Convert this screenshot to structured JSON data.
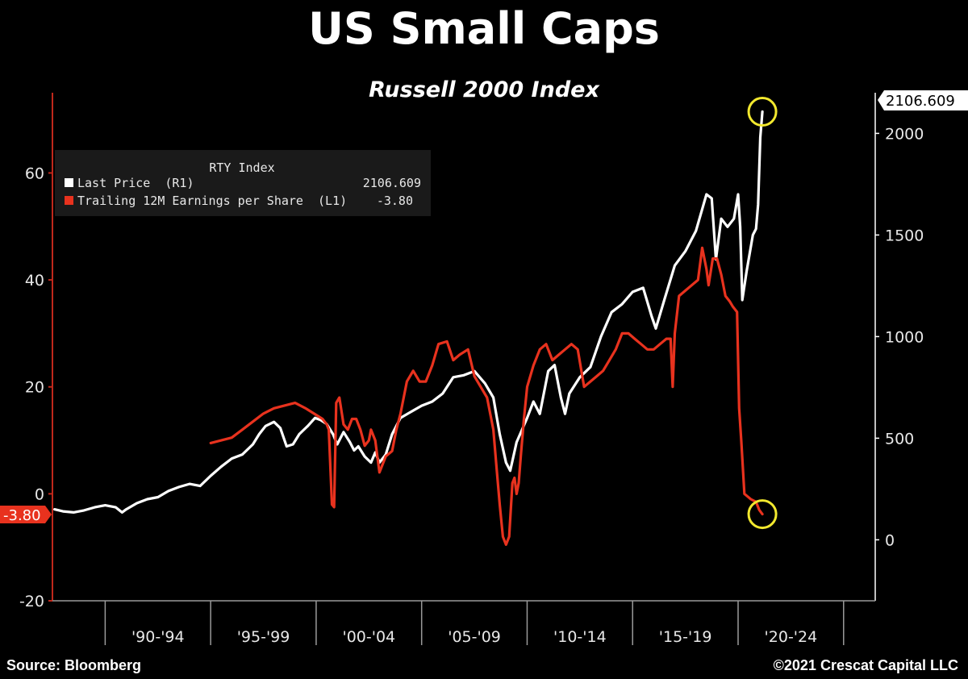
{
  "chart_data": {
    "type": "line",
    "title": "US Small Caps",
    "subtitle": "Russell 2000 Index",
    "legend": {
      "placement": "top-left",
      "title": "RTY Index",
      "entries": [
        {
          "label": "Last Price  (R1)",
          "value": "2106.609"
        },
        {
          "label": "Trailing 12M Earnings per Share  (L1)",
          "value": "-3.80"
        }
      ]
    },
    "left_axis": {
      "ylim": [
        -20,
        75
      ],
      "ticks": [
        "60",
        "40",
        "20",
        "0",
        "-20"
      ]
    },
    "right_axis": {
      "ylim": [
        -300,
        2200
      ],
      "ticks": [
        "2000",
        "1500",
        "1000",
        "500",
        "0"
      ]
    },
    "x_axis": {
      "xlim": [
        1987.5,
        2026.5
      ],
      "tick_labels": [
        "'90-'94",
        "'95-'99",
        "'00-'04",
        "'05-'09",
        "'10-'14",
        "'15-'19",
        "'20-'24"
      ]
    },
    "last_value_labels": {
      "price": "2106.609",
      "eps": "-3.80"
    },
    "grid": false,
    "colors": {
      "price": "#ffffff",
      "eps": "#e8321e",
      "highlight_circle": "#f2e82e",
      "left_axis": "#c0281b",
      "right_axis": "#ffffff"
    },
    "series": [
      {
        "name": "Last Price  (R1)",
        "axis": "right",
        "color": "#ffffff",
        "x": [
          1987.6,
          1988.0,
          1988.5,
          1989.0,
          1989.5,
          1990.0,
          1990.5,
          1990.8,
          1991.0,
          1991.5,
          1992.0,
          1992.5,
          1993.0,
          1993.5,
          1994.0,
          1994.5,
          1995.0,
          1995.5,
          1996.0,
          1996.5,
          1997.0,
          1997.3,
          1997.6,
          1998.0,
          1998.3,
          1998.6,
          1998.9,
          1999.2,
          1999.6,
          1999.95,
          2000.2,
          2000.5,
          2000.8,
          2001.0,
          2001.3,
          2001.6,
          2001.8,
          2002.0,
          2002.3,
          2002.6,
          2002.8,
          2003.0,
          2003.3,
          2003.6,
          2004.0,
          2004.5,
          2005.0,
          2005.5,
          2006.0,
          2006.5,
          2007.0,
          2007.5,
          2008.0,
          2008.4,
          2008.7,
          2009.0,
          2009.2,
          2009.5,
          2010.0,
          2010.3,
          2010.6,
          2011.0,
          2011.3,
          2011.6,
          2011.8,
          2012.0,
          2012.5,
          2013.0,
          2013.5,
          2014.0,
          2014.5,
          2015.0,
          2015.5,
          2015.9,
          2016.1,
          2016.5,
          2017.0,
          2017.5,
          2018.0,
          2018.5,
          2018.75,
          2018.95,
          2019.2,
          2019.5,
          2019.8,
          2020.0,
          2020.1,
          2020.2,
          2020.4,
          2020.7,
          2020.85,
          2020.95,
          2021.05,
          2021.15
        ],
        "values": [
          150,
          140,
          135,
          145,
          160,
          170,
          160,
          135,
          150,
          180,
          200,
          210,
          240,
          260,
          275,
          265,
          315,
          360,
          400,
          420,
          470,
          520,
          560,
          580,
          550,
          460,
          470,
          520,
          560,
          600,
          590,
          570,
          520,
          470,
          530,
          480,
          440,
          460,
          410,
          380,
          430,
          380,
          420,
          520,
          600,
          630,
          660,
          680,
          720,
          800,
          810,
          830,
          770,
          700,
          520,
          380,
          340,
          480,
          600,
          680,
          620,
          830,
          860,
          700,
          620,
          720,
          800,
          850,
          1000,
          1120,
          1160,
          1220,
          1240,
          1100,
          1040,
          1180,
          1350,
          1420,
          1520,
          1700,
          1680,
          1380,
          1580,
          1540,
          1580,
          1700,
          1540,
          1180,
          1320,
          1500,
          1530,
          1650,
          1980,
          2106.609
        ]
      },
      {
        "name": "Trailing 12M Earnings per Share  (L1)",
        "axis": "left",
        "color": "#e8321e",
        "x": [
          1995.0,
          1995.5,
          1996.0,
          1996.5,
          1997.0,
          1997.5,
          1998.0,
          1998.5,
          1999.0,
          1999.5,
          1999.9,
          2000.3,
          2000.5,
          2000.6,
          2000.75,
          2000.85,
          2000.95,
          2001.1,
          2001.3,
          2001.5,
          2001.7,
          2001.9,
          2002.1,
          2002.3,
          2002.5,
          2002.6,
          2002.8,
          2003.0,
          2003.3,
          2003.6,
          2003.8,
          2004.0,
          2004.3,
          2004.6,
          2004.9,
          2005.2,
          2005.5,
          2005.8,
          2006.2,
          2006.5,
          2006.8,
          2007.2,
          2007.5,
          2007.8,
          2008.1,
          2008.4,
          2008.55,
          2008.7,
          2008.85,
          2009.0,
          2009.15,
          2009.3,
          2009.4,
          2009.5,
          2009.6,
          2009.7,
          2009.85,
          2010.0,
          2010.3,
          2010.6,
          2010.9,
          2011.2,
          2011.5,
          2011.8,
          2012.1,
          2012.4,
          2012.7,
          2013.0,
          2013.3,
          2013.6,
          2013.9,
          2014.2,
          2014.5,
          2014.8,
          2015.1,
          2015.4,
          2015.7,
          2016.0,
          2016.3,
          2016.6,
          2016.8,
          2016.9,
          2017.0,
          2017.2,
          2017.5,
          2017.8,
          2018.1,
          2018.3,
          2018.5,
          2018.6,
          2018.8,
          2019.0,
          2019.2,
          2019.4,
          2019.6,
          2019.75,
          2019.95,
          2020.05,
          2020.15,
          2020.3,
          2020.45,
          2020.6,
          2020.85,
          2021.0,
          2021.15
        ],
        "values": [
          9.5,
          10.0,
          10.5,
          12.0,
          13.5,
          15.0,
          16.0,
          16.5,
          17.0,
          16.0,
          15.0,
          14.0,
          13.0,
          12.0,
          -2.0,
          -2.5,
          17.0,
          18.0,
          13.0,
          12.0,
          14.0,
          14.0,
          12.0,
          9.0,
          10.0,
          12.0,
          10.0,
          4.0,
          7.0,
          8.0,
          12.0,
          15.0,
          21.0,
          23.0,
          21.0,
          21.0,
          24.0,
          28.0,
          28.5,
          25.0,
          26.0,
          27.0,
          22.0,
          20.0,
          18.0,
          12.0,
          5.0,
          -2.0,
          -8.0,
          -9.5,
          -8.0,
          2.0,
          3.0,
          0.0,
          2.0,
          7.0,
          14.0,
          20.0,
          24.0,
          27.0,
          28.0,
          25.0,
          26.0,
          27.0,
          28.0,
          27.0,
          20.0,
          21.0,
          22.0,
          23.0,
          25.0,
          27.0,
          30.0,
          30.0,
          29.0,
          28.0,
          27.0,
          27.0,
          28.0,
          29.0,
          29.0,
          20.0,
          30.0,
          37.0,
          38.0,
          39.0,
          40.0,
          46.0,
          42.0,
          39.0,
          44.0,
          44.0,
          41.0,
          37.0,
          36.0,
          35.0,
          34.0,
          16.0,
          10.0,
          0.0,
          -0.5,
          -1.0,
          -1.5,
          -3.0,
          -3.8
        ]
      }
    ]
  },
  "footer": {
    "source": "Source: Bloomberg",
    "copyright": "©2021 Crescat Capital LLC"
  }
}
